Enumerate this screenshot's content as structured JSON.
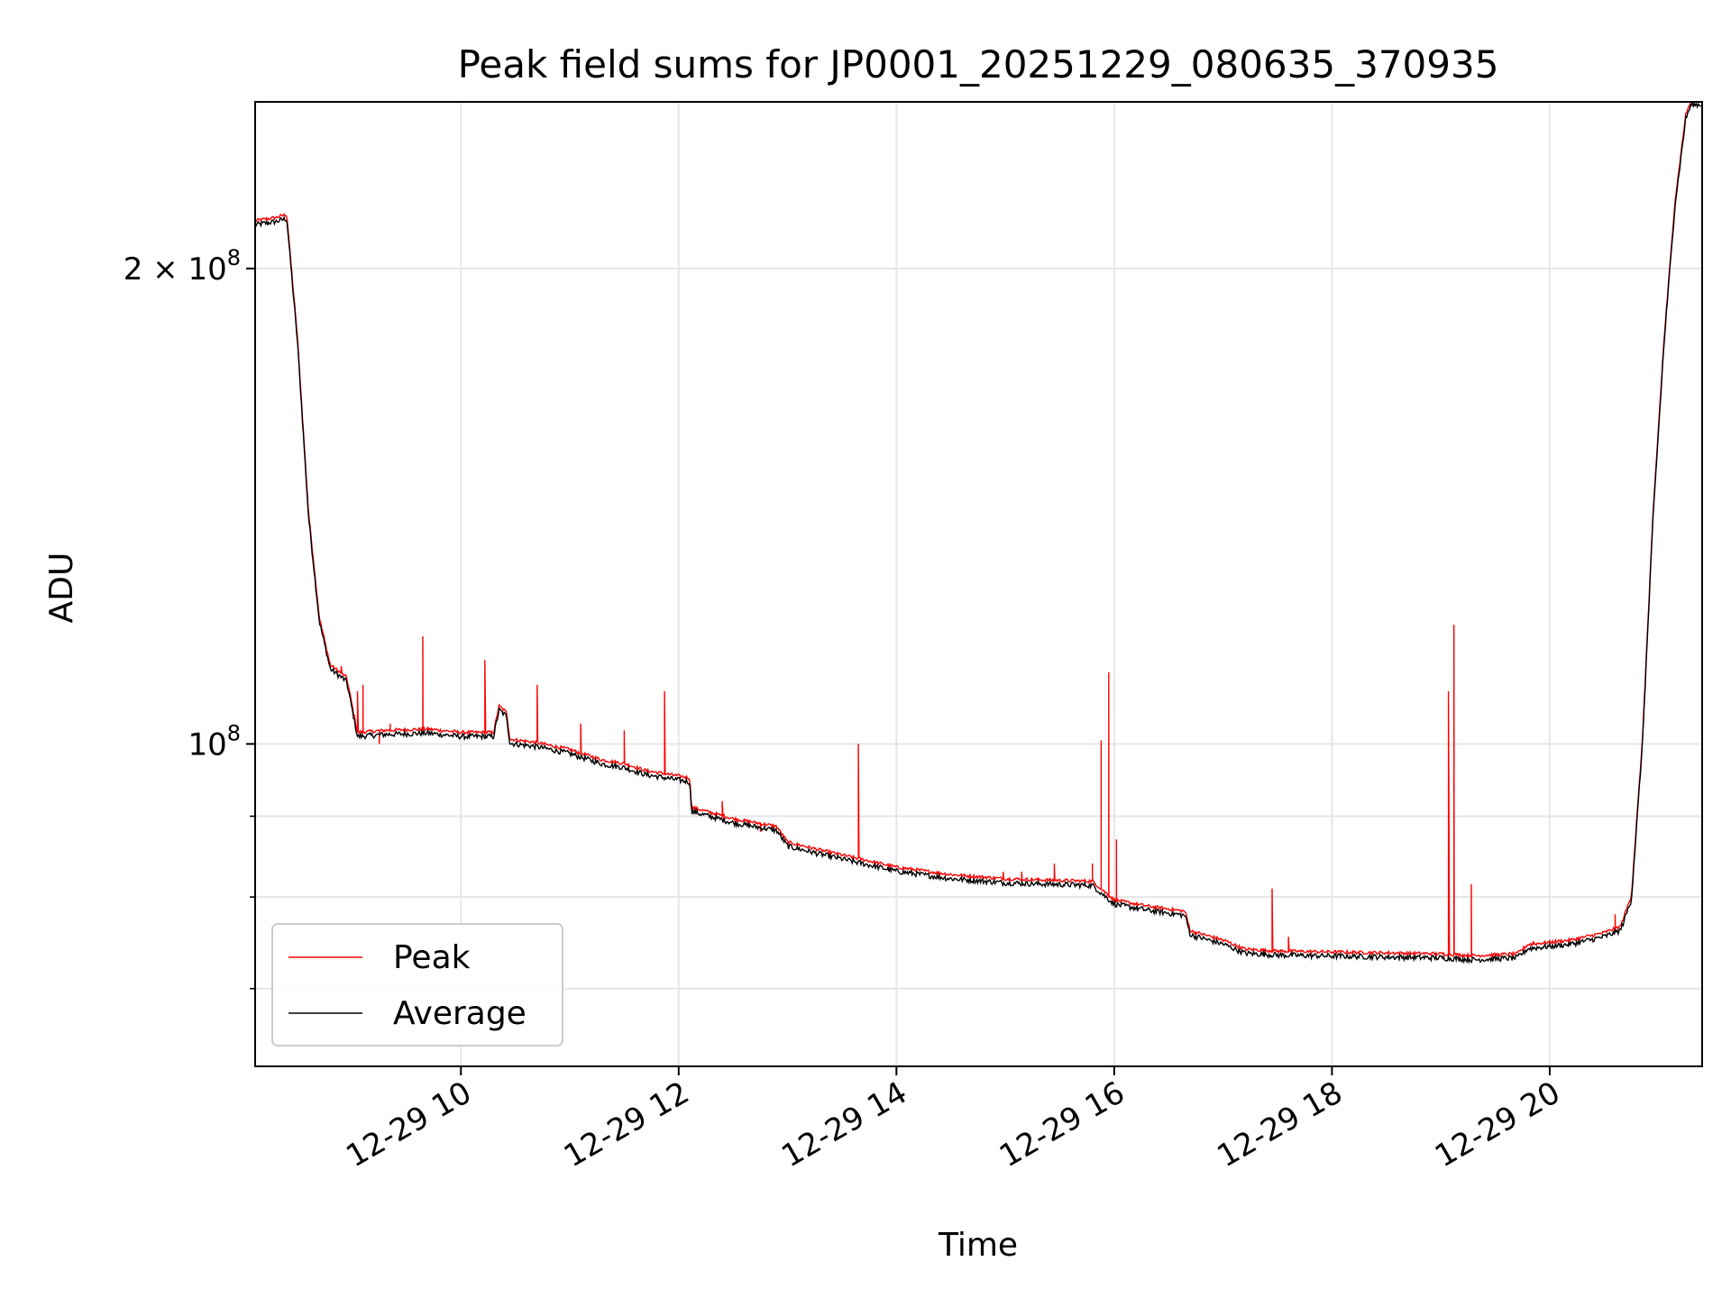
{
  "chart_data": {
    "type": "line",
    "title": "Peak field sums for JP0001_20251229_080635_370935",
    "xlabel": "Time",
    "ylabel": "ADU",
    "yscale": "log",
    "xlim": [
      8.11,
      21.4
    ],
    "ylim": [
      62500000,
      255000000
    ],
    "grid": true,
    "legend_position": "lower-left",
    "x_ticks": [
      {
        "value": 10,
        "label": "12-29 10"
      },
      {
        "value": 12,
        "label": "12-29 12"
      },
      {
        "value": 14,
        "label": "12-29 14"
      },
      {
        "value": 16,
        "label": "12-29 16"
      },
      {
        "value": 18,
        "label": "12-29 18"
      },
      {
        "value": 20,
        "label": "12-29 20"
      }
    ],
    "y_ticks_major": [
      {
        "value": 100000000,
        "base": "10",
        "exp": "8",
        "coef": ""
      },
      {
        "value": 200000000,
        "base": "10",
        "exp": "8",
        "coef": "2 × "
      }
    ],
    "y_ticks_minor": [
      70000000,
      80000000,
      90000000
    ],
    "series": [
      {
        "name": "Peak",
        "color": "#ff0000",
        "spikes": [
          [
            8.9,
            112000000
          ],
          [
            9.05,
            108000000
          ],
          [
            9.1,
            109000000
          ],
          [
            9.25,
            100000000
          ],
          [
            9.35,
            103000000
          ],
          [
            9.65,
            117000000
          ],
          [
            10.22,
            113000000
          ],
          [
            10.7,
            109000000
          ],
          [
            11.1,
            103000000
          ],
          [
            11.5,
            102000000
          ],
          [
            11.87,
            108000000
          ],
          [
            12.4,
            92000000
          ],
          [
            12.75,
            88000000
          ],
          [
            13.65,
            100000000
          ],
          [
            14.98,
            83000000
          ],
          [
            15.15,
            83000000
          ],
          [
            15.45,
            84000000
          ],
          [
            15.8,
            84000000
          ],
          [
            15.88,
            100500000
          ],
          [
            15.95,
            111000000
          ],
          [
            16.02,
            87000000
          ],
          [
            16.75,
            76000000
          ],
          [
            17.0,
            75000000
          ],
          [
            17.45,
            81000000
          ],
          [
            17.6,
            75500000
          ],
          [
            19.07,
            108000000
          ],
          [
            19.12,
            119000000
          ],
          [
            19.28,
            81500000
          ],
          [
            19.85,
            75000000
          ],
          [
            20.15,
            75000000
          ],
          [
            20.6,
            78000000
          ]
        ]
      },
      {
        "name": "Average",
        "color": "#000000"
      }
    ],
    "trend": [
      [
        8.11,
        214000000
      ],
      [
        8.2,
        214500000
      ],
      [
        8.3,
        215000000
      ],
      [
        8.4,
        216000000
      ],
      [
        8.5,
        180000000
      ],
      [
        8.6,
        140000000
      ],
      [
        8.7,
        120000000
      ],
      [
        8.8,
        112000000
      ],
      [
        8.95,
        110000000
      ],
      [
        9.05,
        101500000
      ],
      [
        9.3,
        101800000
      ],
      [
        9.7,
        102000000
      ],
      [
        10.0,
        101500000
      ],
      [
        10.3,
        101500000
      ],
      [
        10.35,
        105500000
      ],
      [
        10.42,
        104500000
      ],
      [
        10.45,
        100500000
      ],
      [
        10.7,
        100000000
      ],
      [
        11.0,
        99000000
      ],
      [
        11.3,
        97500000
      ],
      [
        11.5,
        97000000
      ],
      [
        11.7,
        96000000
      ],
      [
        11.9,
        95500000
      ],
      [
        12.1,
        95000000
      ],
      [
        12.12,
        91000000
      ],
      [
        12.5,
        89500000
      ],
      [
        12.9,
        88500000
      ],
      [
        13.0,
        86500000
      ],
      [
        13.3,
        85500000
      ],
      [
        13.7,
        84300000
      ],
      [
        14.0,
        83400000
      ],
      [
        14.5,
        82500000
      ],
      [
        15.0,
        82000000
      ],
      [
        15.5,
        81800000
      ],
      [
        15.8,
        81700000
      ],
      [
        16.0,
        79500000
      ],
      [
        16.3,
        78800000
      ],
      [
        16.65,
        78200000
      ],
      [
        16.7,
        76000000
      ],
      [
        17.0,
        75000000
      ],
      [
        17.2,
        74000000
      ],
      [
        17.5,
        73800000
      ],
      [
        18.0,
        73700000
      ],
      [
        18.5,
        73600000
      ],
      [
        19.0,
        73500000
      ],
      [
        19.3,
        73300000
      ],
      [
        19.7,
        73500000
      ],
      [
        19.8,
        74500000
      ],
      [
        20.2,
        75000000
      ],
      [
        20.5,
        75800000
      ],
      [
        20.65,
        76500000
      ],
      [
        20.75,
        80000000
      ],
      [
        20.85,
        100000000
      ],
      [
        20.95,
        140000000
      ],
      [
        21.05,
        180000000
      ],
      [
        21.15,
        220000000
      ],
      [
        21.25,
        250000000
      ],
      [
        21.3,
        255000000
      ],
      [
        21.4,
        255000000
      ]
    ]
  }
}
